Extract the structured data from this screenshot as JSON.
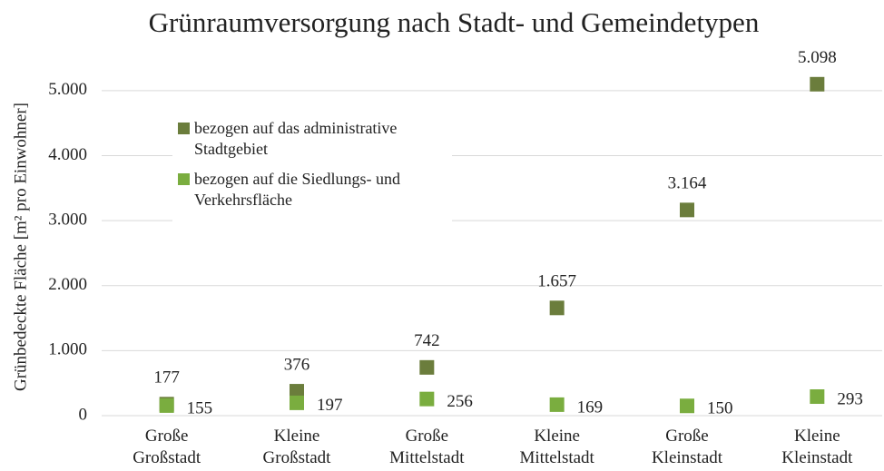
{
  "chart_data": {
    "type": "dot",
    "title": "Grünraumversorgung nach Stadt- und Gemeindetypen",
    "y_label": "Grünbedeckte Fläche [m² pro Einwohner]",
    "categories": [
      [
        "Große",
        "Großstadt"
      ],
      [
        "Kleine",
        "Großstadt"
      ],
      [
        "Große",
        "Mittelstadt"
      ],
      [
        "Kleine",
        "Mittelstadt"
      ],
      [
        "Große",
        "Kleinstadt"
      ],
      [
        "Kleine",
        "Kleinstadt"
      ]
    ],
    "series": [
      {
        "name": "bezogen auf das administrative Stadtgebiet",
        "color": "#6b7d3c",
        "label_position": "above",
        "values": [
          177,
          376,
          742,
          1657,
          3164,
          5098
        ],
        "value_labels": [
          "177",
          "376",
          "742",
          "1.657",
          "3.164",
          "5.098"
        ]
      },
      {
        "name": "bezogen auf die Siedlungs- und Verkehrsfläche",
        "color": "#7aad3f",
        "label_position": "right",
        "values": [
          155,
          197,
          256,
          169,
          150,
          293
        ],
        "value_labels": [
          "155",
          "197",
          "256",
          "169",
          "150",
          "293"
        ]
      }
    ],
    "ylim": [
      0,
      5500
    ],
    "yticks": [
      0,
      {
        "value": 1000,
        "label": "1.000"
      },
      {
        "value": 2000,
        "label": "2.000"
      },
      {
        "value": 3000,
        "label": "3.000"
      },
      {
        "value": 4000,
        "label": "4.000"
      },
      {
        "value": 5000,
        "label": "5.000"
      }
    ],
    "grid": true,
    "legend": "upper left"
  }
}
